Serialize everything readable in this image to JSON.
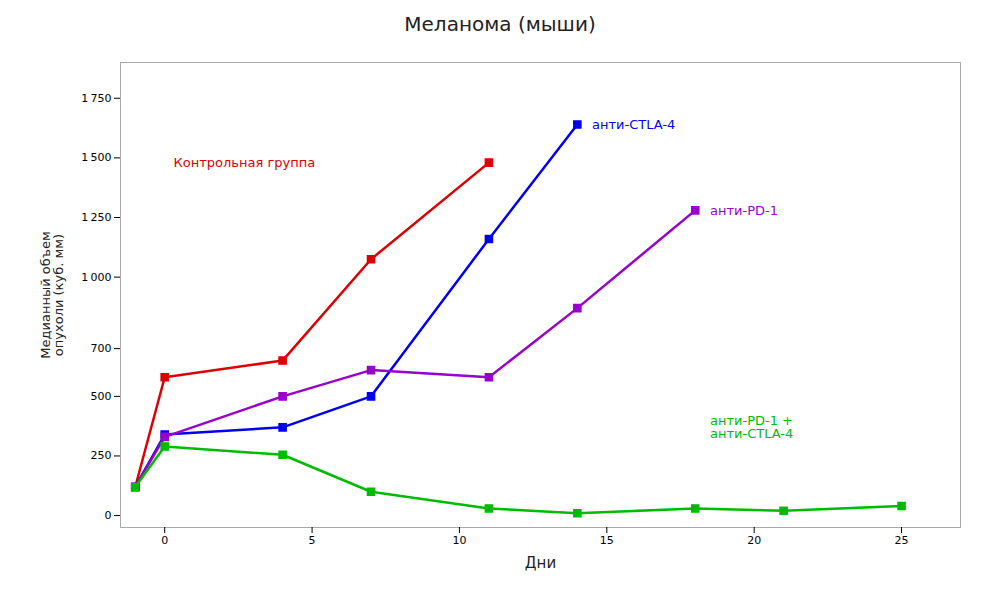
{
  "chart_data": {
    "type": "line",
    "title": "Меланома (мыши)",
    "xlabel": "Дни",
    "ylabel": "Медианный объем\nопухоли (куб. мм)",
    "marker": "square",
    "line_style": "solid",
    "series": [
      {
        "name": "Контрольная группа",
        "color": "#dd0000",
        "x": [
          -1,
          0,
          4,
          7,
          11
        ],
        "values": [
          120,
          580,
          650,
          1075,
          1480
        ]
      },
      {
        "name": "анти-CTLA-4",
        "color": "#0000ee",
        "x": [
          -1,
          0,
          4,
          7,
          11,
          14
        ],
        "values": [
          120,
          340,
          370,
          500,
          1160,
          1640
        ]
      },
      {
        "name": "анти-PD-1",
        "color": "#9900cc",
        "x": [
          -1,
          0,
          4,
          7,
          11,
          14,
          18
        ],
        "values": [
          120,
          330,
          500,
          610,
          580,
          870,
          1280
        ]
      },
      {
        "name": "анти-PD-1 +\nанти-CTLA-4",
        "color": "#00bb00",
        "x": [
          -1,
          0,
          4,
          7,
          11,
          14,
          18,
          21,
          25
        ],
        "values": [
          120,
          290,
          255,
          100,
          30,
          10,
          30,
          20,
          40
        ]
      }
    ],
    "annotations": [
      {
        "text": "Контрольная группа",
        "x": 0.3,
        "y": 1480,
        "color": "#dd0000"
      },
      {
        "text": "анти-CTLA-4",
        "x": 14.5,
        "y": 1640,
        "color": "#0000ee"
      },
      {
        "text": "анти-PD-1",
        "x": 18.5,
        "y": 1280,
        "color": "#9900cc"
      },
      {
        "text": "анти-PD-1 +\nанти-CTLA-4",
        "x": 18.5,
        "y": 370,
        "color": "#00bb00"
      }
    ],
    "xlim": [
      -1.5,
      27
    ],
    "ylim": [
      -50,
      1900
    ],
    "xticks": [
      0,
      5,
      10,
      15,
      20,
      25
    ],
    "yticks": [
      0,
      250,
      500,
      700,
      {
        "value": 1000,
        "label": "1 000"
      },
      {
        "value": 1250,
        "label": "1 250"
      },
      {
        "value": 1500,
        "label": "1 500"
      },
      {
        "value": 1750,
        "label": "1 750"
      }
    ]
  }
}
